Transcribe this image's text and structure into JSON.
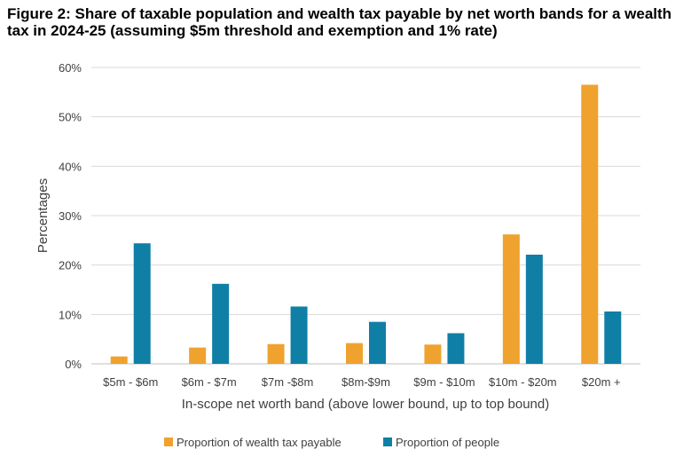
{
  "chart_data": {
    "type": "bar",
    "title": "Figure 2: Share of taxable population and wealth tax payable by net worth bands for a wealth tax in 2024-25 (assuming $5m threshold and exemption and 1% rate)",
    "xlabel": "In-scope net worth band (above lower bound, up to top bound)",
    "ylabel": "Percentages",
    "categories": [
      "$5m - $6m",
      "$6m - $7m",
      "$7m -$8m",
      "$8m-$9m",
      "$9m - $10m",
      "$10m - $20m",
      "$20m +"
    ],
    "yticks": [
      "0%",
      "10%",
      "20%",
      "30%",
      "40%",
      "50%",
      "60%"
    ],
    "ylim": [
      0,
      60
    ],
    "grid": true,
    "legend_position": "bottom",
    "series": [
      {
        "name": "Proportion of wealth tax payable",
        "color": "#F0A22E",
        "values": [
          1.5,
          3.3,
          4.0,
          4.2,
          3.9,
          26.2,
          56.5
        ]
      },
      {
        "name": "Proportion of people",
        "color": "#0F7FA6",
        "values": [
          24.4,
          16.2,
          11.6,
          8.5,
          6.2,
          22.1,
          10.6
        ]
      }
    ]
  }
}
